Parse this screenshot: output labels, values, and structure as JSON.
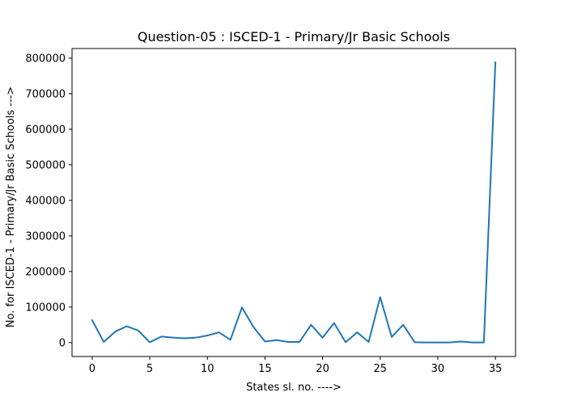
{
  "chart_data": {
    "type": "line",
    "title": "Question-05 : ISCED-1 - Primary/Jr Basic Schools",
    "xlabel": "States sl. no. ---->",
    "ylabel": "No. for ISCED-1 - Primary/Jr Basic Schools --->",
    "xlim": [
      -1.75,
      36.75
    ],
    "ylim": [
      -39000,
      827000
    ],
    "x_ticks": [
      0,
      5,
      10,
      15,
      20,
      25,
      30,
      35
    ],
    "y_ticks": [
      0,
      100000,
      200000,
      300000,
      400000,
      500000,
      600000,
      700000,
      800000
    ],
    "x_tick_labels": [
      "0",
      "5",
      "10",
      "15",
      "20",
      "25",
      "30",
      "35"
    ],
    "y_tick_labels": [
      "0",
      "100000",
      "200000",
      "300000",
      "400000",
      "500000",
      "600000",
      "700000",
      "800000"
    ],
    "grid": false,
    "series": [
      {
        "color": "#1f77b4",
        "x": [
          0,
          1,
          2,
          3,
          4,
          5,
          6,
          7,
          8,
          9,
          10,
          11,
          12,
          13,
          14,
          15,
          16,
          17,
          18,
          19,
          20,
          21,
          22,
          23,
          24,
          25,
          26,
          27,
          28,
          29,
          30,
          31,
          32,
          33,
          34,
          35
        ],
        "values": [
          63000,
          2000,
          31000,
          46000,
          34000,
          1000,
          17000,
          14000,
          12000,
          14000,
          20000,
          29000,
          8000,
          99000,
          44000,
          3000,
          7000,
          2000,
          2000,
          50000,
          14000,
          55000,
          1000,
          29000,
          2000,
          128000,
          16000,
          50000,
          1000,
          500,
          500,
          500,
          3000,
          500,
          500,
          788000
        ]
      }
    ]
  }
}
